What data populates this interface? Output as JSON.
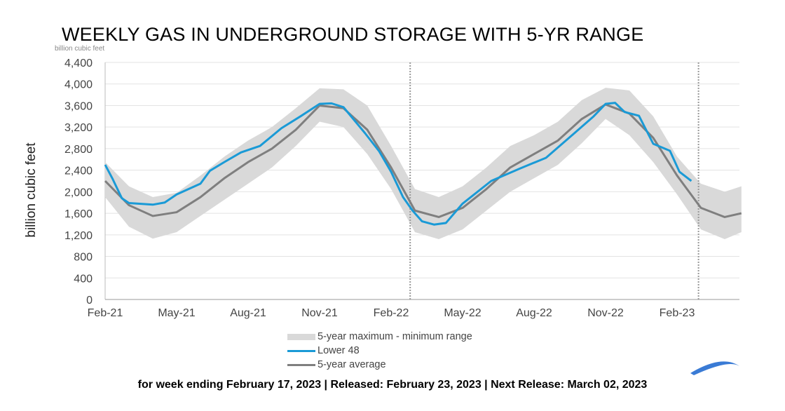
{
  "chart_data": {
    "type": "line",
    "title": "WEEKLY GAS IN UNDERGROUND STORAGE WITH 5-YR RANGE",
    "unit_label": "billion cubic feet",
    "ylabel": "billion cubic feet",
    "ylim": [
      0,
      4400
    ],
    "yticks": [
      "0",
      "400",
      "800",
      "1,200",
      "1,600",
      "2,000",
      "2,400",
      "2,800",
      "3,200",
      "3,600",
      "4,000",
      "4,400"
    ],
    "xlim_months_from_feb21": [
      0,
      27
    ],
    "xticks": [
      {
        "m": 0,
        "label": "Feb-21"
      },
      {
        "m": 3,
        "label": "May-21"
      },
      {
        "m": 6,
        "label": "Aug-21"
      },
      {
        "m": 9,
        "label": "Nov-21"
      },
      {
        "m": 12,
        "label": "Feb-22"
      },
      {
        "m": 15,
        "label": "May-22"
      },
      {
        "m": 18,
        "label": "Aug-22"
      },
      {
        "m": 21,
        "label": "Nov-22"
      },
      {
        "m": 24,
        "label": "Feb-23"
      }
    ],
    "vlines_months": [
      12.8,
      24.9
    ],
    "range": {
      "name": "5-year maximum - minimum range",
      "color": "#d9d9d9",
      "x": [
        0,
        1,
        2,
        3,
        4,
        5,
        6,
        7,
        8,
        9,
        10,
        11,
        12,
        13,
        14,
        15,
        16,
        17,
        18,
        19,
        20,
        21,
        22,
        23,
        24,
        25,
        26,
        26.7
      ],
      "max": [
        2550,
        2100,
        1900,
        1980,
        2300,
        2650,
        2950,
        3200,
        3550,
        3920,
        3900,
        3600,
        2850,
        2050,
        1900,
        2100,
        2450,
        2850,
        3050,
        3300,
        3700,
        3930,
        3880,
        3400,
        2650,
        2150,
        2000,
        2100
      ],
      "min": [
        1900,
        1350,
        1130,
        1250,
        1550,
        1850,
        2150,
        2450,
        2850,
        3300,
        3200,
        2700,
        2050,
        1250,
        1120,
        1300,
        1650,
        2000,
        2250,
        2500,
        2900,
        3350,
        3050,
        2550,
        1950,
        1300,
        1120,
        1250
      ]
    },
    "series": [
      {
        "name": "Lower 48",
        "color": "#1a9ad6",
        "x": [
          0,
          0.3,
          0.7,
          1,
          2,
          2.5,
          3,
          4,
          4.4,
          5,
          5.7,
          6.5,
          7.4,
          8.2,
          9,
          9.5,
          10,
          10.9,
          11.5,
          12,
          12.5,
          12.9,
          13.3,
          13.8,
          14.3,
          15,
          16.2,
          17.4,
          18.5,
          19.7,
          20.5,
          21,
          21.4,
          21.8,
          22.4,
          23,
          23.7,
          24.1,
          24.6
        ],
        "y": [
          2500,
          2250,
          1880,
          1790,
          1760,
          1800,
          1950,
          2150,
          2390,
          2550,
          2730,
          2850,
          3180,
          3400,
          3630,
          3640,
          3570,
          3090,
          2750,
          2370,
          1900,
          1650,
          1450,
          1390,
          1420,
          1780,
          2200,
          2430,
          2630,
          3090,
          3400,
          3630,
          3650,
          3480,
          3410,
          2890,
          2760,
          2370,
          2200
        ]
      },
      {
        "name": "5-year average",
        "color": "#7f7f7f",
        "x": [
          0,
          1,
          2,
          3,
          4,
          5,
          6,
          7,
          8,
          9,
          10,
          11,
          12,
          13,
          14,
          15,
          16,
          17,
          18,
          19,
          20,
          21,
          22,
          23,
          24,
          25,
          26,
          26.7
        ],
        "y": [
          2200,
          1750,
          1550,
          1620,
          1900,
          2250,
          2550,
          2800,
          3150,
          3600,
          3550,
          3150,
          2450,
          1650,
          1530,
          1700,
          2050,
          2450,
          2700,
          2950,
          3350,
          3620,
          3450,
          3000,
          2300,
          1700,
          1530,
          1600
        ]
      }
    ],
    "legend": [
      "5-year maximum - minimum range",
      "Lower 48",
      "5-year average"
    ],
    "legend_placement": "bottom-center"
  },
  "footer": "for week ending February 17, 2023   |   Released: February 23, 2023   |   Next Release: March 02, 2023"
}
